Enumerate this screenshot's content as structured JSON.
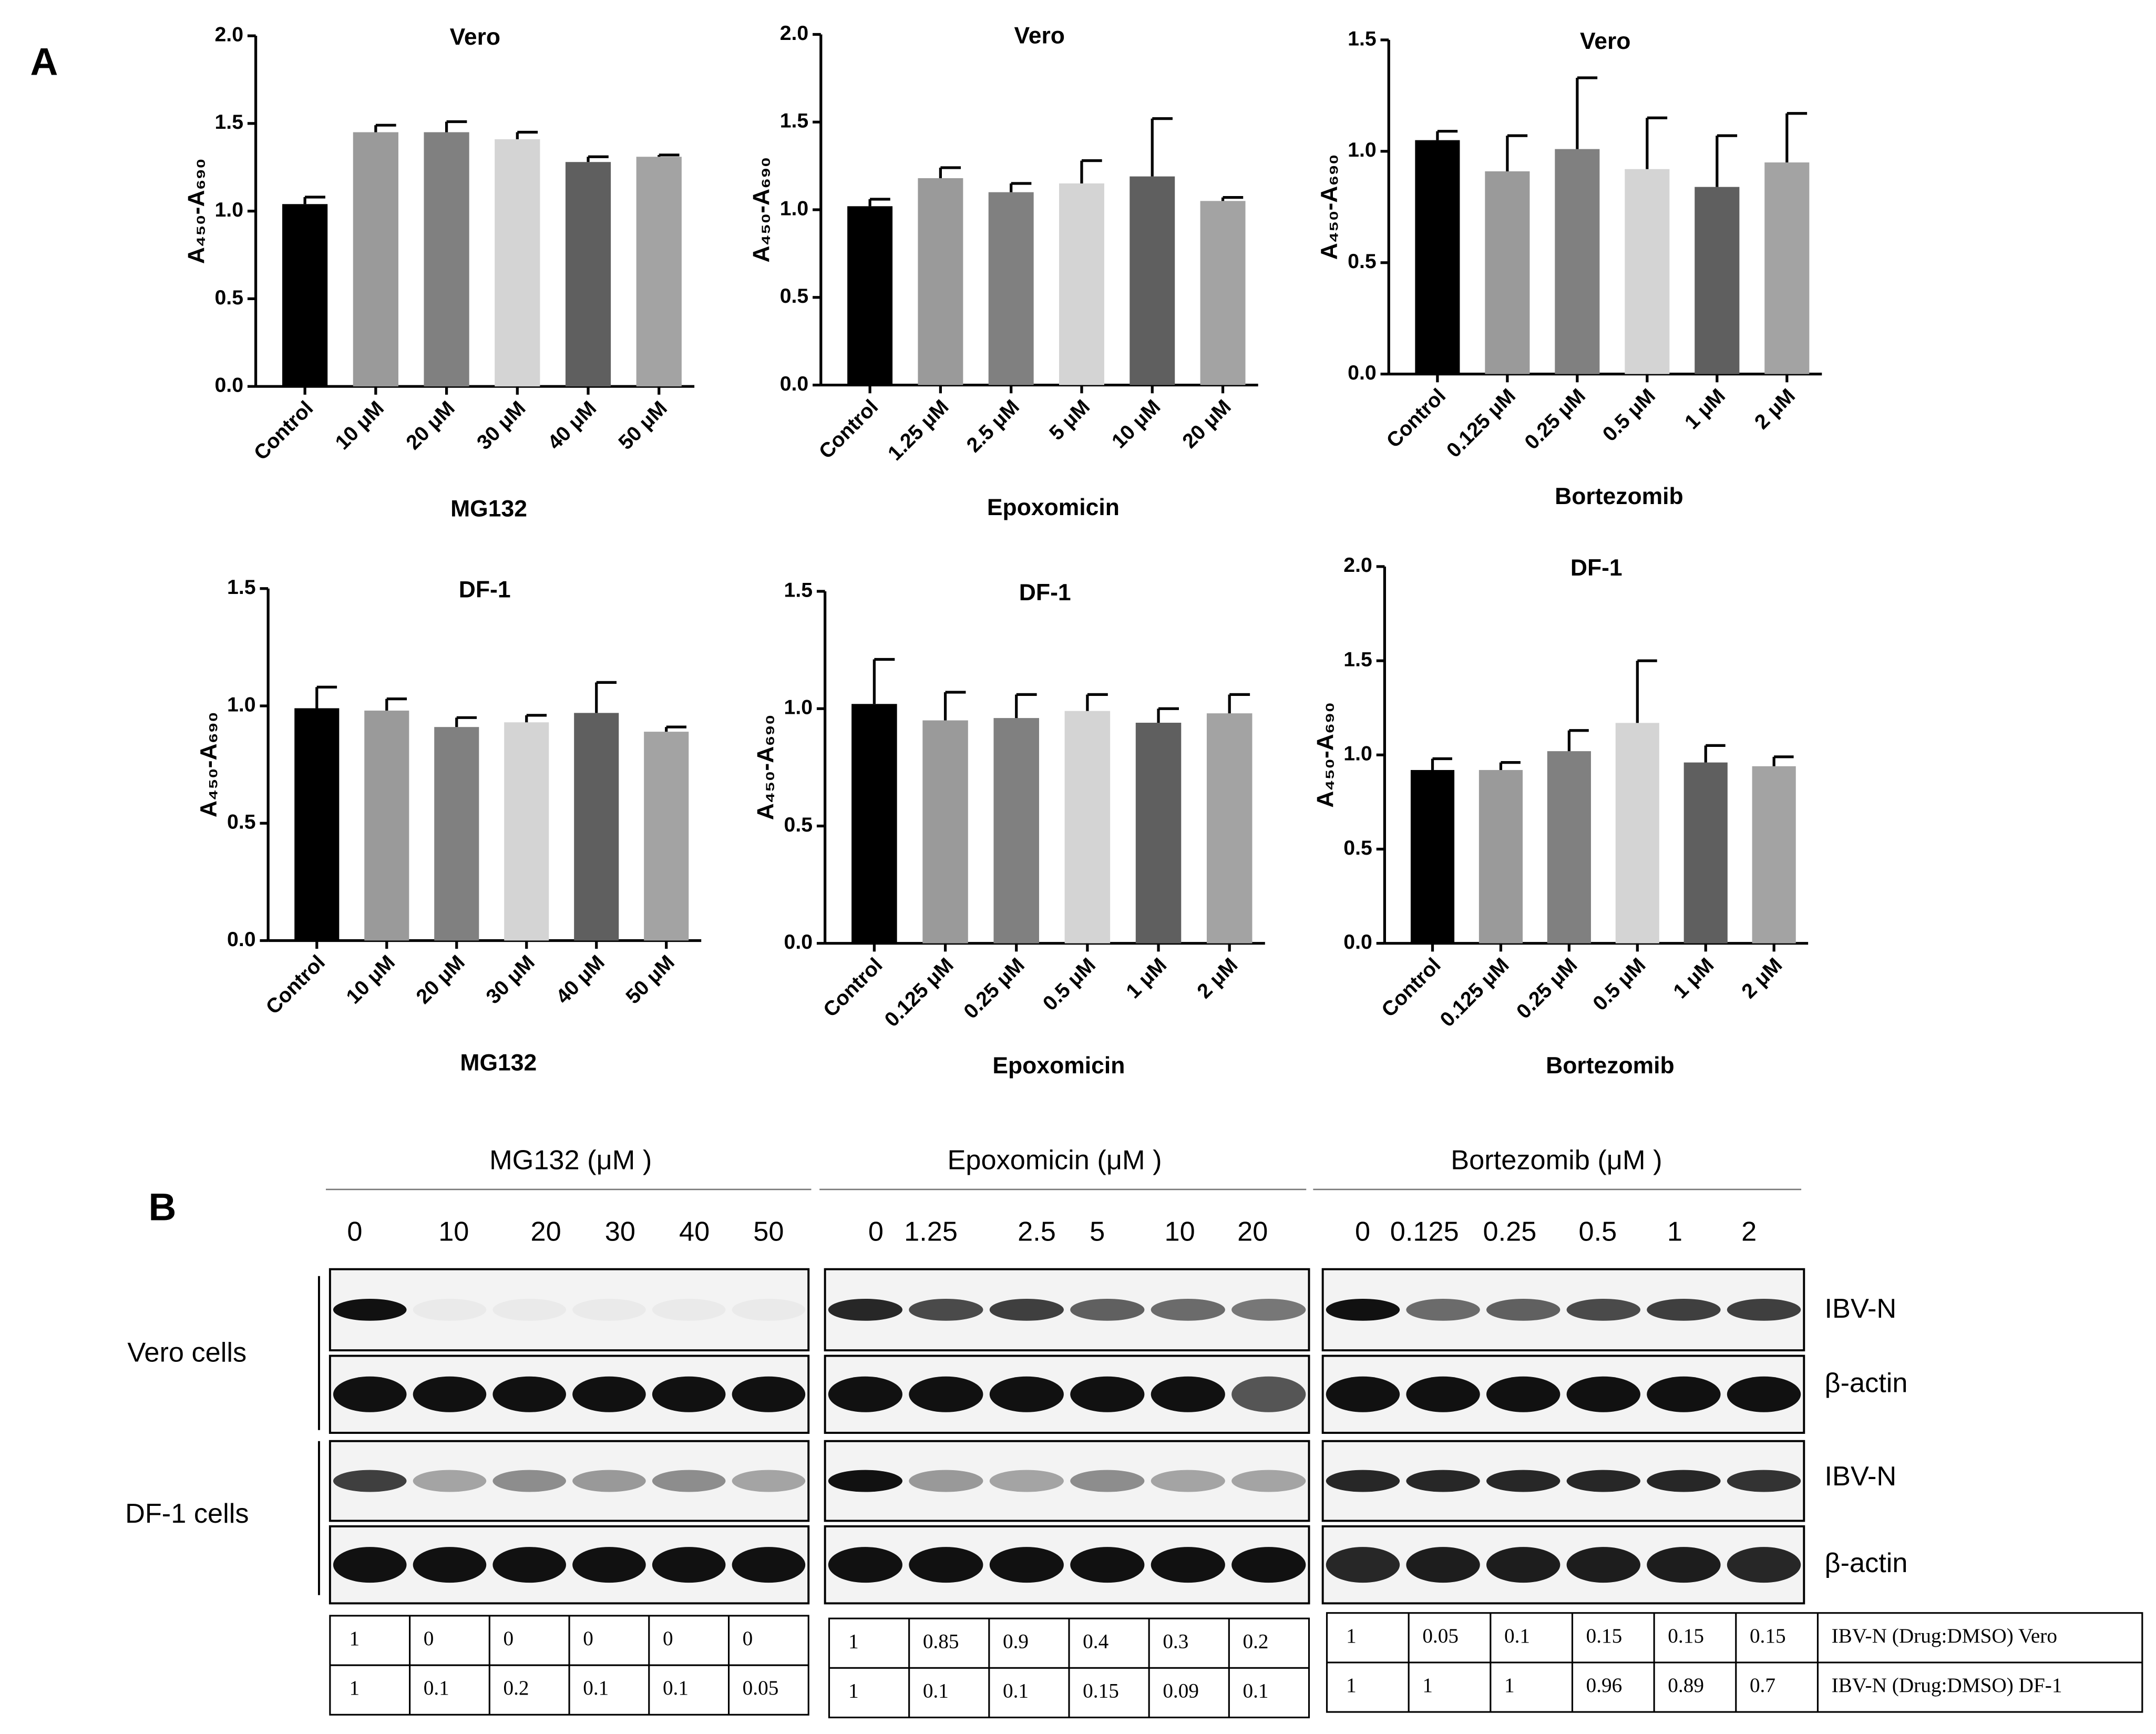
{
  "panel_label_a": "A",
  "chart_data": [
    {
      "type": "bar",
      "title": "Vero",
      "x_label": "MG132",
      "y_label": "A₄₅₀-A₆₉₀",
      "categories": [
        "Control",
        "10 μM",
        "20 μM",
        "30 μM",
        "40 μM",
        "50 μM"
      ],
      "values": [
        1.04,
        1.45,
        1.45,
        1.41,
        1.28,
        1.31
      ],
      "errors": [
        0.04,
        0.04,
        0.06,
        0.04,
        0.03,
        0.01
      ],
      "colors": [
        "#000000",
        "#9a9a9a",
        "#808080",
        "#d4d4d4",
        "#5f5f5f",
        "#a3a3a3"
      ],
      "ylim": [
        0,
        2
      ],
      "yticks": [
        {
          "value": 0,
          "label": "0.0"
        },
        {
          "value": 0.5,
          "label": "0.5"
        },
        {
          "value": 1,
          "label": "1.0"
        },
        {
          "value": 1.5,
          "label": "1.5"
        },
        {
          "value": 2,
          "label": "2.0"
        }
      ]
    },
    {
      "type": "bar",
      "title": "Vero",
      "x_label": "Epoxomicin",
      "y_label": "A₄₅₀-A₆₉₀",
      "categories": [
        "Control",
        "1.25 μM",
        "2.5 μM",
        "5 μM",
        "10 μM",
        "20 μM"
      ],
      "values": [
        1.02,
        1.18,
        1.1,
        1.15,
        1.19,
        1.05
      ],
      "errors": [
        0.04,
        0.06,
        0.05,
        0.13,
        0.33,
        0.02
      ],
      "colors": [
        "#000000",
        "#9a9a9a",
        "#808080",
        "#d4d4d4",
        "#5f5f5f",
        "#a3a3a3"
      ],
      "ylim": [
        0,
        2
      ],
      "yticks": [
        {
          "value": 0,
          "label": "0.0"
        },
        {
          "value": 0.5,
          "label": "0.5"
        },
        {
          "value": 1,
          "label": "1.0"
        },
        {
          "value": 1.5,
          "label": "1.5"
        },
        {
          "value": 2,
          "label": "2.0"
        }
      ]
    },
    {
      "type": "bar",
      "title": "Vero",
      "x_label": "Bortezomib",
      "y_label": "A₄₅₀-A₆₉₀",
      "categories": [
        "Control",
        "0.125 μM",
        "0.25 μM",
        "0.5 μM",
        "1 μM",
        "2 μM"
      ],
      "values": [
        1.05,
        0.91,
        1.01,
        0.92,
        0.84,
        0.95
      ],
      "errors": [
        0.04,
        0.16,
        0.32,
        0.23,
        0.23,
        0.22
      ],
      "colors": [
        "#000000",
        "#9a9a9a",
        "#808080",
        "#d4d4d4",
        "#5f5f5f",
        "#a3a3a3"
      ],
      "ylim": [
        0,
        1.5
      ],
      "yticks": [
        {
          "value": 0,
          "label": "0.0"
        },
        {
          "value": 0.5,
          "label": "0.5"
        },
        {
          "value": 1,
          "label": "1.0"
        },
        {
          "value": 1.5,
          "label": "1.5"
        }
      ]
    },
    {
      "type": "bar",
      "title": "DF-1",
      "x_label": "MG132",
      "y_label": "A₄₅₀-A₆₉₀",
      "categories": [
        "Control",
        "10 μM",
        "20 μM",
        "30 μM",
        "40 μM",
        "50 μM"
      ],
      "values": [
        0.99,
        0.98,
        0.91,
        0.93,
        0.97,
        0.89
      ],
      "errors": [
        0.09,
        0.05,
        0.04,
        0.03,
        0.13,
        0.02
      ],
      "colors": [
        "#000000",
        "#9a9a9a",
        "#808080",
        "#d4d4d4",
        "#5f5f5f",
        "#a3a3a3"
      ],
      "ylim": [
        0,
        1.5
      ],
      "yticks": [
        {
          "value": 0,
          "label": "0.0"
        },
        {
          "value": 0.5,
          "label": "0.5"
        },
        {
          "value": 1,
          "label": "1.0"
        },
        {
          "value": 1.5,
          "label": "1.5"
        }
      ]
    },
    {
      "type": "bar",
      "title": "DF-1",
      "x_label": "Epoxomicin",
      "y_label": "A₄₅₀-A₆₉₀",
      "categories": [
        "Control",
        "0.125 μM",
        "0.25 μM",
        "0.5 μM",
        "1 μM",
        "2 μM"
      ],
      "values": [
        1.02,
        0.95,
        0.96,
        0.99,
        0.94,
        0.98
      ],
      "errors": [
        0.19,
        0.12,
        0.1,
        0.07,
        0.06,
        0.08
      ],
      "colors": [
        "#000000",
        "#9a9a9a",
        "#808080",
        "#d4d4d4",
        "#5f5f5f",
        "#a3a3a3"
      ],
      "ylim": [
        0,
        1.5
      ],
      "yticks": [
        {
          "value": 0,
          "label": "0.0"
        },
        {
          "value": 0.5,
          "label": "0.5"
        },
        {
          "value": 1,
          "label": "1.0"
        },
        {
          "value": 1.5,
          "label": "1.5"
        }
      ]
    },
    {
      "type": "bar",
      "title": "DF-1",
      "x_label": "Bortezomib",
      "y_label": "A₄₅₀-A₆₉₀",
      "categories": [
        "Control",
        "0.125 μM",
        "0.25 μM",
        "0.5 μM",
        "1 μM",
        "2 μM"
      ],
      "values": [
        0.92,
        0.92,
        1.02,
        1.17,
        0.96,
        0.94
      ],
      "errors": [
        0.06,
        0.04,
        0.11,
        0.33,
        0.09,
        0.05
      ],
      "colors": [
        "#000000",
        "#9a9a9a",
        "#808080",
        "#d4d4d4",
        "#5f5f5f",
        "#a3a3a3"
      ],
      "ylim": [
        0,
        2
      ],
      "yticks": [
        {
          "value": 0,
          "label": "0.0"
        },
        {
          "value": 0.5,
          "label": "0.5"
        },
        {
          "value": 1,
          "label": "1.0"
        },
        {
          "value": 1.5,
          "label": "1.5"
        },
        {
          "value": 2,
          "label": "2.0"
        }
      ]
    }
  ],
  "part_b": {
    "label": "B",
    "cell_labels": [
      "Vero cells",
      "DF-1 cells"
    ],
    "blot_labels": [
      "IBV-N",
      "β-actin",
      "IBV-N",
      "β-actin"
    ],
    "table_row_labels": [
      "IBV-N (Drug:DMSO) Vero",
      "IBV-N (Drug:DMSO) DF-1"
    ],
    "drugs": [
      {
        "header": "MG132 (μM )",
        "doses": [
          0,
          10,
          20,
          30,
          40,
          50
        ],
        "table": [
          [
            1,
            0,
            0,
            0,
            0,
            0
          ],
          [
            1,
            0.1,
            0.2,
            0.1,
            0.1,
            0.05
          ]
        ]
      },
      {
        "header": "Epoxomicin (μM )",
        "doses": [
          0,
          1.25,
          2.5,
          5,
          10,
          20
        ],
        "table": [
          [
            1,
            0.85,
            0.9,
            0.4,
            0.3,
            0.2
          ],
          [
            1,
            0.1,
            0.1,
            0.15,
            0.09,
            0.1
          ]
        ]
      },
      {
        "header": "Bortezomib (μM )",
        "doses": [
          0,
          0.125,
          0.25,
          0.5,
          1,
          2
        ],
        "table": [
          [
            1,
            0.05,
            0.1,
            0.15,
            0.15,
            0.15
          ],
          [
            1,
            1,
            1,
            0.96,
            0.89,
            0.7
          ]
        ]
      }
    ]
  }
}
